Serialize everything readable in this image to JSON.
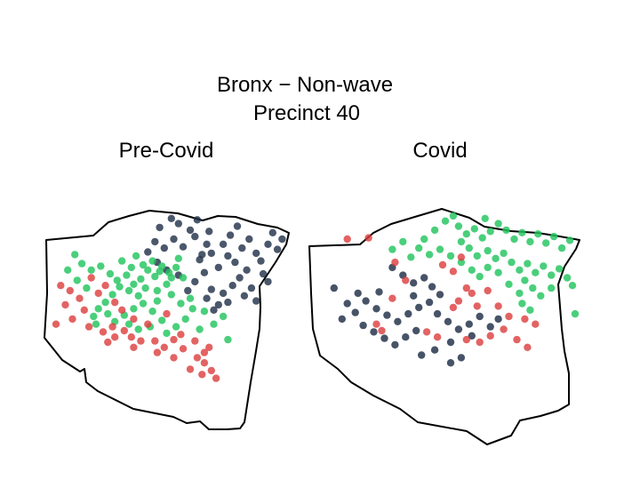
{
  "title": {
    "line1": "Bronx − Non-wave",
    "line2": "Precinct 40"
  },
  "colors": {
    "green": "#22c55e",
    "red": "#dc3c3c",
    "dark": "#1e2d46",
    "background": "#ffffff",
    "boundary": "#000000"
  },
  "chart_data": [
    {
      "type": "scatter",
      "title": "Pre-Covid",
      "series": [
        {
          "color": "dark",
          "opacity": 0.8,
          "values": [
            [
              0.47,
              0.11
            ],
            [
              0.52,
              0.04
            ],
            [
              0.55,
              0.08
            ],
            [
              0.6,
              0.13
            ],
            [
              0.53,
              0.2
            ],
            [
              0.57,
              0.26
            ],
            [
              0.62,
              0.18
            ],
            [
              0.67,
              0.24
            ],
            [
              0.64,
              0.36
            ],
            [
              0.69,
              0.31
            ],
            [
              0.72,
              0.42
            ],
            [
              0.66,
              0.46
            ],
            [
              0.74,
              0.24
            ],
            [
              0.76,
              0.33
            ],
            [
              0.79,
              0.38
            ],
            [
              0.82,
              0.27
            ],
            [
              0.85,
              0.2
            ],
            [
              0.88,
              0.31
            ],
            [
              0.9,
              0.37
            ],
            [
              0.84,
              0.44
            ],
            [
              0.93,
              0.24
            ],
            [
              0.95,
              0.15
            ],
            [
              0.97,
              0.28
            ],
            [
              0.81,
              0.5
            ],
            [
              0.86,
              0.58
            ],
            [
              0.91,
              0.47
            ],
            [
              0.78,
              0.56
            ],
            [
              0.74,
              0.62
            ],
            [
              0.69,
              0.59
            ],
            [
              0.67,
              0.66
            ],
            [
              0.72,
              0.71
            ],
            [
              0.93,
              0.53
            ],
            [
              0.88,
              0.68
            ],
            [
              0.83,
              0.64
            ],
            [
              0.62,
              0.53
            ],
            [
              0.59,
              0.6
            ],
            [
              0.55,
              0.48
            ],
            [
              0.5,
              0.44
            ],
            [
              0.46,
              0.38
            ],
            [
              0.42,
              0.3
            ],
            [
              0.45,
              0.22
            ],
            [
              0.49,
              0.27
            ],
            [
              0.63,
              0.05
            ],
            [
              0.68,
              0.14
            ],
            [
              0.77,
              0.17
            ],
            [
              0.8,
              0.1
            ],
            [
              0.99,
              0.2
            ],
            [
              0.7,
              0.75
            ],
            [
              0.76,
              0.69
            ],
            [
              0.65,
              0.32
            ]
          ]
        },
        {
          "color": "green",
          "opacity": 0.82,
          "values": [
            [
              0.11,
              0.32
            ],
            [
              0.14,
              0.39
            ],
            [
              0.18,
              0.44
            ],
            [
              0.22,
              0.41
            ],
            [
              0.26,
              0.47
            ],
            [
              0.29,
              0.52
            ],
            [
              0.33,
              0.48
            ],
            [
              0.36,
              0.55
            ],
            [
              0.39,
              0.51
            ],
            [
              0.42,
              0.44
            ],
            [
              0.45,
              0.49
            ],
            [
              0.48,
              0.41
            ],
            [
              0.51,
              0.46
            ],
            [
              0.54,
              0.42
            ],
            [
              0.57,
              0.5
            ],
            [
              0.5,
              0.55
            ],
            [
              0.46,
              0.6
            ],
            [
              0.41,
              0.58
            ],
            [
              0.38,
              0.64
            ],
            [
              0.34,
              0.6
            ],
            [
              0.3,
              0.57
            ],
            [
              0.27,
              0.63
            ],
            [
              0.24,
              0.69
            ],
            [
              0.21,
              0.74
            ],
            [
              0.19,
              0.8
            ],
            [
              0.25,
              0.78
            ],
            [
              0.28,
              0.84
            ],
            [
              0.32,
              0.79
            ],
            [
              0.36,
              0.74
            ],
            [
              0.4,
              0.7
            ],
            [
              0.44,
              0.76
            ],
            [
              0.48,
              0.83
            ],
            [
              0.43,
              0.88
            ],
            [
              0.38,
              0.9
            ],
            [
              0.34,
              0.86
            ],
            [
              0.46,
              0.68
            ],
            [
              0.52,
              0.63
            ],
            [
              0.56,
              0.7
            ],
            [
              0.61,
              0.74
            ],
            [
              0.58,
              0.82
            ],
            [
              0.54,
              0.88
            ],
            [
              0.5,
              0.93
            ],
            [
              0.64,
              0.9
            ],
            [
              0.7,
              0.86
            ],
            [
              0.74,
              0.8
            ],
            [
              0.08,
              0.44
            ],
            [
              0.12,
              0.52
            ],
            [
              0.16,
              0.58
            ],
            [
              0.4,
              0.4
            ],
            [
              0.44,
              0.37
            ],
            [
              0.47,
              0.45
            ],
            [
              0.52,
              0.5
            ],
            [
              0.35,
              0.42
            ],
            [
              0.31,
              0.37
            ],
            [
              0.37,
              0.33
            ],
            [
              0.2,
              0.86
            ],
            [
              0.6,
              0.66
            ],
            [
              0.66,
              0.76
            ],
            [
              0.76,
              0.98
            ],
            [
              0.55,
              0.35
            ]
          ]
        },
        {
          "color": "red",
          "opacity": 0.8,
          "values": [
            [
              0.05,
              0.56
            ],
            [
              0.09,
              0.6
            ],
            [
              0.13,
              0.66
            ],
            [
              0.07,
              0.71
            ],
            [
              0.15,
              0.75
            ],
            [
              0.1,
              0.82
            ],
            [
              0.17,
              0.88
            ],
            [
              0.23,
              0.92
            ],
            [
              0.28,
              0.96
            ],
            [
              0.32,
              0.91
            ],
            [
              0.27,
              0.88
            ],
            [
              0.35,
              0.96
            ],
            [
              0.39,
              0.99
            ],
            [
              0.45,
              0.99
            ],
            [
              0.49,
              1.04
            ],
            [
              0.53,
              0.98
            ],
            [
              0.57,
              1.05
            ],
            [
              0.62,
              0.99
            ],
            [
              0.66,
              1.08
            ],
            [
              0.63,
              1.12
            ],
            [
              0.66,
              1.16
            ],
            [
              0.6,
              1.21
            ],
            [
              0.65,
              1.25
            ],
            [
              0.69,
              1.22
            ],
            [
              0.71,
              1.28
            ],
            [
              0.21,
              0.62
            ],
            [
              0.24,
              0.56
            ],
            [
              0.18,
              0.5
            ],
            [
              0.03,
              0.86
            ],
            [
              0.31,
              0.75
            ],
            [
              0.28,
              0.69
            ],
            [
              0.36,
              0.82
            ],
            [
              0.42,
              0.86
            ],
            [
              0.5,
              0.78
            ],
            [
              0.56,
              0.94
            ],
            [
              0.25,
              1.0
            ],
            [
              0.36,
              1.04
            ],
            [
              0.46,
              1.08
            ],
            [
              0.53,
              1.12
            ],
            [
              0.68,
              1.04
            ]
          ]
        }
      ]
    },
    {
      "type": "scatter",
      "title": "Covid",
      "series": [
        {
          "color": "green",
          "opacity": 0.82,
          "values": [
            [
              0.42,
              0.2
            ],
            [
              0.46,
              0.13
            ],
            [
              0.5,
              0.06
            ],
            [
              0.53,
              0.02
            ],
            [
              0.55,
              0.1
            ],
            [
              0.58,
              0.16
            ],
            [
              0.61,
              0.12
            ],
            [
              0.64,
              0.19
            ],
            [
              0.67,
              0.14
            ],
            [
              0.7,
              0.08
            ],
            [
              0.73,
              0.13
            ],
            [
              0.76,
              0.2
            ],
            [
              0.79,
              0.15
            ],
            [
              0.82,
              0.22
            ],
            [
              0.85,
              0.16
            ],
            [
              0.88,
              0.23
            ],
            [
              0.91,
              0.18
            ],
            [
              0.94,
              0.27
            ],
            [
              0.97,
              0.21
            ],
            [
              0.59,
              0.27
            ],
            [
              0.62,
              0.33
            ],
            [
              0.66,
              0.29
            ],
            [
              0.69,
              0.35
            ],
            [
              0.72,
              0.31
            ],
            [
              0.75,
              0.38
            ],
            [
              0.78,
              0.44
            ],
            [
              0.81,
              0.39
            ],
            [
              0.84,
              0.46
            ],
            [
              0.87,
              0.41
            ],
            [
              0.9,
              0.48
            ],
            [
              0.93,
              0.43
            ],
            [
              0.96,
              0.5
            ],
            [
              0.8,
              0.52
            ],
            [
              0.83,
              0.58
            ],
            [
              0.86,
              0.64
            ],
            [
              0.78,
              0.62
            ],
            [
              0.74,
              0.55
            ],
            [
              0.7,
              0.46
            ],
            [
              0.66,
              0.42
            ],
            [
              0.63,
              0.49
            ],
            [
              0.6,
              0.44
            ],
            [
              0.56,
              0.38
            ],
            [
              0.52,
              0.33
            ],
            [
              0.48,
              0.28
            ],
            [
              0.44,
              0.32
            ],
            [
              0.4,
              0.27
            ],
            [
              0.37,
              0.34
            ],
            [
              0.34,
              0.22
            ],
            [
              0.3,
              0.28
            ],
            [
              0.79,
              0.7
            ],
            [
              0.82,
              0.75
            ],
            [
              0.98,
              0.56
            ],
            [
              0.99,
              0.78
            ],
            [
              0.65,
              0.04
            ],
            [
              0.56,
              0.22
            ],
            [
              0.9,
              0.58
            ]
          ]
        },
        {
          "color": "dark",
          "opacity": 0.82,
          "values": [
            [
              0.3,
              0.42
            ],
            [
              0.34,
              0.48
            ],
            [
              0.38,
              0.54
            ],
            [
              0.42,
              0.5
            ],
            [
              0.45,
              0.57
            ],
            [
              0.48,
              0.63
            ],
            [
              0.44,
              0.69
            ],
            [
              0.4,
              0.73
            ],
            [
              0.36,
              0.78
            ],
            [
              0.32,
              0.84
            ],
            [
              0.28,
              0.79
            ],
            [
              0.24,
              0.74
            ],
            [
              0.2,
              0.68
            ],
            [
              0.17,
              0.62
            ],
            [
              0.13,
              0.7
            ],
            [
              0.16,
              0.77
            ],
            [
              0.11,
              0.82
            ],
            [
              0.19,
              0.87
            ],
            [
              0.23,
              0.92
            ],
            [
              0.27,
              0.97
            ],
            [
              0.31,
              1.02
            ],
            [
              0.35,
              0.96
            ],
            [
              0.39,
              0.91
            ],
            [
              0.47,
              0.78
            ],
            [
              0.51,
              0.84
            ],
            [
              0.55,
              0.9
            ],
            [
              0.59,
              0.86
            ],
            [
              0.63,
              0.8
            ],
            [
              0.67,
              0.88
            ],
            [
              0.6,
              0.95
            ],
            [
              0.52,
              1.0
            ],
            [
              0.46,
              1.06
            ],
            [
              0.41,
              1.1
            ],
            [
              0.56,
              1.12
            ],
            [
              0.08,
              0.58
            ],
            [
              0.25,
              0.61
            ],
            [
              0.52,
              1.16
            ],
            [
              0.7,
              0.82
            ],
            [
              0.38,
              0.64
            ]
          ]
        },
        {
          "color": "red",
          "opacity": 0.8,
          "values": [
            [
              0.13,
              0.2
            ],
            [
              0.21,
              0.19
            ],
            [
              0.31,
              0.38
            ],
            [
              0.35,
              0.52
            ],
            [
              0.49,
              0.4
            ],
            [
              0.53,
              0.45
            ],
            [
              0.56,
              0.34
            ],
            [
              0.58,
              0.58
            ],
            [
              0.62,
              0.72
            ],
            [
              0.6,
              0.62
            ],
            [
              0.66,
              0.6
            ],
            [
              0.7,
              0.72
            ],
            [
              0.74,
              0.8
            ],
            [
              0.72,
              0.9
            ],
            [
              0.77,
              0.98
            ],
            [
              0.81,
              1.04
            ],
            [
              0.8,
              0.82
            ],
            [
              0.67,
              0.95
            ],
            [
              0.63,
              1.0
            ],
            [
              0.58,
              0.98
            ],
            [
              0.43,
              0.92
            ],
            [
              0.47,
              0.96
            ],
            [
              0.53,
              0.73
            ],
            [
              0.84,
              0.86
            ],
            [
              0.24,
              0.86
            ],
            [
              0.3,
              0.66
            ],
            [
              0.26,
              0.91
            ],
            [
              0.55,
              0.68
            ]
          ]
        }
      ]
    }
  ]
}
